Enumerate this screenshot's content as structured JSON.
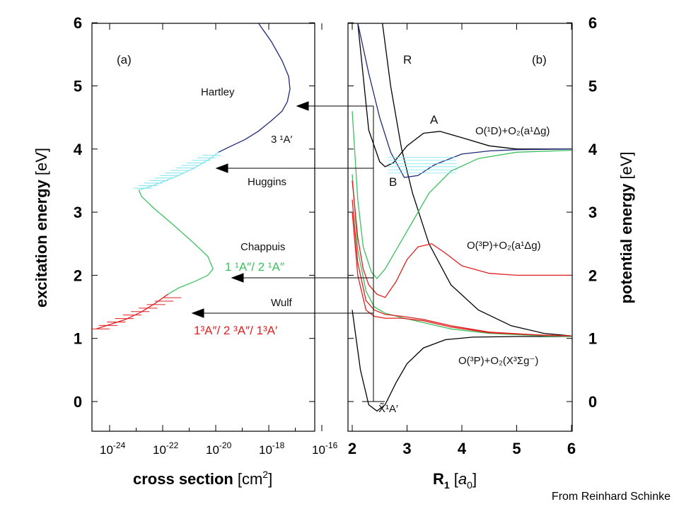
{
  "credit": "From Reinhard Schinke",
  "colors": {
    "black": "#000000",
    "navy": "#1f2a7a",
    "cyan": "#7fe3f0",
    "green": "#3cc060",
    "red": "#e02020"
  },
  "chart_data": [
    {
      "type": "line",
      "panel": "(a)",
      "xlabel_bold": "cross section",
      "xlabel_unit": "[cm",
      "xlabel_sup": "2",
      "xlabel_end": "]",
      "ylabel_bold": "excitation energy",
      "ylabel_unit": "[eV]",
      "x_scale": "log",
      "xlim": [
        1e-25,
        1e-16
      ],
      "ylim": [
        -0.5,
        6
      ],
      "x_ticks": [
        {
          "base": "10",
          "exp": "-24",
          "pow": -24
        },
        {
          "base": "10",
          "exp": "-22",
          "pow": -22
        },
        {
          "base": "10",
          "exp": "-20",
          "pow": -20
        },
        {
          "base": "10",
          "exp": "-18",
          "pow": -18
        },
        {
          "base": "10",
          "exp": "-16",
          "pow": -16
        }
      ],
      "y_ticks": [
        "0",
        "1",
        "2",
        "3",
        "4",
        "5",
        "6"
      ],
      "annotations": {
        "hartley": "Hartley",
        "hartley_state": "3 ¹A′",
        "huggins": "Huggins",
        "chappuis": "Chappuis",
        "chappuis_state": "1 ¹A″/ 2 ¹A″",
        "wulf": "Wulf",
        "wulf_state": "1³A″/ 2 ³A″/ 1³A′"
      },
      "series": [
        {
          "band": "Hartley",
          "color": "#1f2a7a",
          "x_log10": [
            -19.9,
            -19.4,
            -18.9,
            -18.4,
            -17.9,
            -17.5,
            -17.3,
            -17.2,
            -17.25,
            -17.5,
            -17.9,
            -18.4
          ],
          "y": [
            3.95,
            4.05,
            4.15,
            4.28,
            4.45,
            4.6,
            4.75,
            4.95,
            5.15,
            5.4,
            5.7,
            6.0
          ]
        },
        {
          "band": "Huggins",
          "color": "#7fe3f0",
          "x_log10": [
            -22.9,
            -22.5,
            -22.0,
            -21.4,
            -20.8,
            -20.2,
            -19.9
          ],
          "y": [
            3.35,
            3.4,
            3.48,
            3.58,
            3.7,
            3.85,
            3.95
          ]
        },
        {
          "band": "Chappuis",
          "color": "#3cc060",
          "x_log10": [
            -21.8,
            -21.4,
            -20.8,
            -20.3,
            -20.1,
            -20.3,
            -20.8,
            -21.6,
            -22.3,
            -22.8,
            -22.9
          ],
          "y": [
            1.7,
            1.8,
            1.9,
            2.0,
            2.1,
            2.3,
            2.5,
            2.8,
            3.05,
            3.25,
            3.35
          ]
        },
        {
          "band": "Wulf",
          "color": "#e02020",
          "x_log10": [
            -24.5,
            -24.0,
            -23.4,
            -22.8,
            -22.3,
            -21.8
          ],
          "y": [
            1.15,
            1.22,
            1.3,
            1.42,
            1.55,
            1.7
          ]
        }
      ]
    },
    {
      "type": "line",
      "panel": "(b)",
      "xlabel_main": "R",
      "xlabel_sub": "1",
      "xlabel_unit_open": " [",
      "xlabel_unit_it": "a",
      "xlabel_unit_sub": "0",
      "xlabel_unit_close": "]",
      "ylabel_bold": "potential energy",
      "ylabel_unit": "[eV]",
      "xlim": [
        2,
        6
      ],
      "ylim": [
        -0.5,
        6
      ],
      "x_ticks": [
        "2",
        "3",
        "4",
        "5",
        "6"
      ],
      "y_ticks": [
        "0",
        "1",
        "2",
        "3",
        "4",
        "5",
        "6"
      ],
      "annotations": {
        "R": "R",
        "A": "A",
        "B": "B",
        "ground": "X̃¹A′",
        "asym_1D": "O(¹D)+O₂(a¹Δg)",
        "asym_3P_a": "O(³P)+O₂(a¹Δg)",
        "asym_3P_X": "O(³P)+O₂(X³Σg⁻)"
      },
      "series": [
        {
          "name": "X̃¹A′",
          "color": "#000000",
          "x": [
            2.0,
            2.15,
            2.3,
            2.45,
            2.6,
            2.8,
            3.0,
            3.3,
            3.7,
            4.2,
            5.0,
            6.0
          ],
          "y": [
            1.45,
            0.5,
            -0.05,
            -0.15,
            -0.05,
            0.3,
            0.6,
            0.85,
            0.98,
            1.02,
            1.03,
            1.03
          ]
        },
        {
          "name": "R",
          "color": "#000000",
          "x": [
            2.55,
            2.7,
            2.9,
            3.1,
            3.4,
            3.8,
            4.3,
            4.9,
            5.5,
            6.0
          ],
          "y": [
            6.0,
            5.0,
            4.0,
            3.3,
            2.5,
            1.85,
            1.45,
            1.2,
            1.08,
            1.04
          ]
        },
        {
          "name": "A",
          "color": "#000000",
          "x": [
            2.1,
            2.3,
            2.5,
            2.6,
            2.75,
            3.0,
            3.3,
            3.6,
            4.0,
            4.5,
            5.0,
            6.0
          ],
          "y": [
            6.0,
            4.3,
            3.8,
            3.72,
            3.78,
            4.05,
            4.25,
            4.28,
            4.18,
            4.05,
            4.0,
            4.0
          ]
        },
        {
          "name": "3¹A′",
          "color": "#1f2a7a",
          "x": [
            2.1,
            2.3,
            2.5,
            2.7,
            2.95,
            3.2,
            3.5,
            4.0,
            4.5,
            5.0,
            6.0
          ],
          "y": [
            6.0,
            5.2,
            4.5,
            3.95,
            3.55,
            3.58,
            3.75,
            3.92,
            3.97,
            3.99,
            4.0
          ]
        },
        {
          "name": "1¹A″",
          "color": "#3cc060",
          "x": [
            2.0,
            2.1,
            2.2,
            2.35,
            2.45,
            2.6,
            2.8,
            3.1,
            3.4,
            3.8,
            4.3,
            5.0,
            6.0
          ],
          "y": [
            4.6,
            3.2,
            2.45,
            2.05,
            1.95,
            2.1,
            2.4,
            2.85,
            3.3,
            3.65,
            3.85,
            3.95,
            3.98
          ]
        },
        {
          "name": "2¹A″",
          "color": "#3cc060",
          "x": [
            2.0,
            2.1,
            2.25,
            2.4,
            2.6,
            2.9,
            3.3,
            3.8,
            4.5,
            5.5,
            6.0
          ],
          "y": [
            3.6,
            2.4,
            1.75,
            1.5,
            1.4,
            1.33,
            1.25,
            1.15,
            1.08,
            1.04,
            1.03
          ]
        },
        {
          "name": "1³A″",
          "color": "#e02020",
          "x": [
            2.0,
            2.1,
            2.2,
            2.3,
            2.45,
            2.6,
            2.8,
            3.0,
            3.2,
            3.45,
            3.7,
            4.0,
            4.5,
            5.0,
            6.0
          ],
          "y": [
            3.5,
            2.6,
            2.1,
            1.85,
            1.7,
            1.65,
            1.9,
            2.25,
            2.45,
            2.5,
            2.35,
            2.15,
            2.03,
            2.0,
            2.0
          ]
        },
        {
          "name": "2³A″",
          "color": "#e02020",
          "x": [
            2.0,
            2.1,
            2.25,
            2.4,
            2.6,
            2.9,
            3.3,
            3.8,
            4.5,
            5.5,
            6.0
          ],
          "y": [
            3.2,
            2.2,
            1.6,
            1.45,
            1.38,
            1.35,
            1.3,
            1.2,
            1.1,
            1.05,
            1.04
          ]
        },
        {
          "name": "1³A′",
          "color": "#e02020",
          "x": [
            2.0,
            2.1,
            2.25,
            2.4,
            2.6,
            2.9,
            3.3,
            3.8,
            4.5,
            5.5,
            6.0
          ],
          "y": [
            3.0,
            2.0,
            1.45,
            1.35,
            1.32,
            1.32,
            1.28,
            1.18,
            1.09,
            1.05,
            1.04
          ]
        }
      ]
    }
  ]
}
